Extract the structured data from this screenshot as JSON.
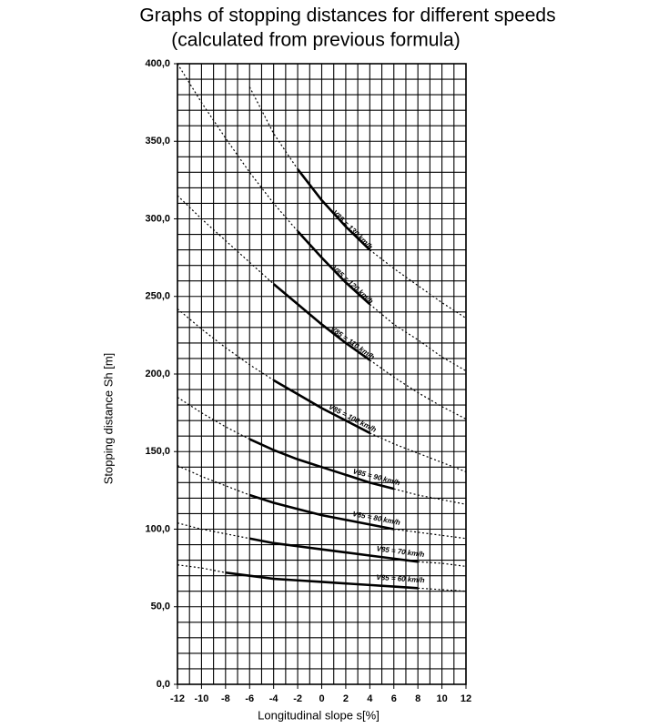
{
  "chart_data": {
    "type": "line",
    "title": "Graphs of stopping distances for different speeds",
    "subtitle": "(calculated from previous formula)",
    "x_label": "Longitudinal slope  s[%]",
    "y_label": "Stopping distance   Sh [m]",
    "x": [
      -12,
      -10,
      -8,
      -6,
      -4,
      -2,
      0,
      2,
      4,
      6,
      8,
      10,
      12
    ],
    "xlim": [
      -12,
      12
    ],
    "ylim": [
      0,
      400
    ],
    "xticks": [
      -12,
      -10,
      -8,
      -6,
      -4,
      -2,
      0,
      2,
      4,
      6,
      8,
      10,
      12
    ],
    "yticks": [
      {
        "value": 0,
        "label": "0,0"
      },
      {
        "value": 50,
        "label": "50,0"
      },
      {
        "value": 100,
        "label": "100,0"
      },
      {
        "value": 150,
        "label": "150,0"
      },
      {
        "value": 200,
        "label": "200,0"
      },
      {
        "value": 250,
        "label": "250,0"
      },
      {
        "value": 300,
        "label": "300,0"
      },
      {
        "value": 350,
        "label": "350,0"
      },
      {
        "value": 400,
        "label": "400,0"
      }
    ],
    "xgrid": [
      -12,
      -11,
      -10,
      -9,
      -8,
      -7,
      -6,
      -5,
      -4,
      -3,
      -2,
      -1,
      0,
      1,
      2,
      3,
      4,
      5,
      6,
      7,
      8,
      9,
      10,
      11,
      12
    ],
    "ygrid": [
      0,
      10,
      20,
      30,
      40,
      50,
      60,
      70,
      80,
      90,
      100,
      110,
      120,
      130,
      140,
      150,
      160,
      170,
      180,
      190,
      200,
      210,
      220,
      230,
      240,
      250,
      260,
      270,
      280,
      290,
      300,
      310,
      320,
      330,
      340,
      350,
      360,
      370,
      380,
      390,
      400
    ],
    "grid": true,
    "series": [
      {
        "name": "V85 = 130 km/h",
        "color": "#000000",
        "solid_range": [
          -2,
          4
        ],
        "values": [
          null,
          null,
          null,
          385,
          355,
          332,
          312,
          295,
          280,
          268,
          257,
          246,
          236
        ]
      },
      {
        "name": "V85 = 120 km/h",
        "color": "#000000",
        "solid_range": [
          -2,
          4
        ],
        "values": [
          400,
          375,
          352,
          330,
          310,
          292,
          275,
          259,
          245,
          232,
          222,
          211,
          202
        ]
      },
      {
        "name": "V85 = 110 km/h",
        "color": "#000000",
        "solid_range": [
          -4,
          4
        ],
        "values": [
          315,
          300,
          286,
          272,
          258,
          245,
          232,
          220,
          209,
          198,
          188,
          179,
          171
        ]
      },
      {
        "name": "V85 = 100 km/h",
        "color": "#000000",
        "solid_range": [
          -4,
          4
        ],
        "values": [
          242,
          229,
          217,
          206,
          196,
          187,
          178,
          170,
          162,
          155,
          149,
          143,
          137
        ]
      },
      {
        "name": "V85 = 90 km/h",
        "color": "#000000",
        "solid_range": [
          -6,
          6
        ],
        "values": [
          185,
          175,
          166,
          158,
          151,
          145,
          140,
          135,
          130,
          126,
          122,
          119,
          116
        ]
      },
      {
        "name": "V85 = 80 km/h",
        "color": "#000000",
        "solid_range": [
          -6,
          6
        ],
        "values": [
          141,
          134,
          128,
          122,
          117,
          113,
          109,
          106,
          103,
          100,
          98,
          96,
          94
        ]
      },
      {
        "name": "V85 = 70 km/h",
        "color": "#000000",
        "solid_range": [
          -6,
          8
        ],
        "values": [
          104,
          100,
          97,
          94,
          91,
          89,
          87,
          85,
          83,
          81,
          79,
          78,
          76
        ]
      },
      {
        "name": "V85 = 60 km/h",
        "color": "#000000",
        "solid_range": [
          -8,
          8
        ],
        "values": [
          77,
          75,
          72,
          70,
          68,
          67,
          66,
          65,
          64,
          63,
          62,
          61,
          60
        ]
      }
    ]
  }
}
